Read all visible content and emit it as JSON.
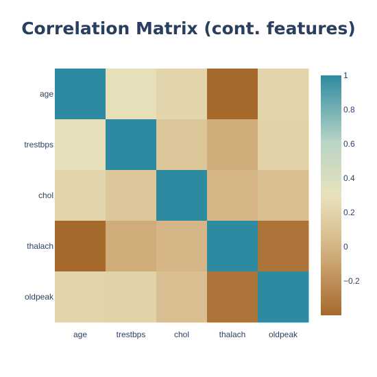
{
  "chart_data": {
    "type": "heatmap",
    "title": "Correlation Matrix (cont. features)",
    "x_categories": [
      "age",
      "trestbps",
      "chol",
      "thalach",
      "oldpeak"
    ],
    "y_categories": [
      "age",
      "trestbps",
      "chol",
      "thalach",
      "oldpeak"
    ],
    "z": [
      [
        1.0,
        0.28,
        0.21,
        -0.4,
        0.21
      ],
      [
        0.28,
        1.0,
        0.12,
        -0.05,
        0.19
      ],
      [
        0.21,
        0.12,
        1.0,
        0.0,
        0.06
      ],
      [
        -0.4,
        -0.05,
        0.0,
        1.0,
        -0.34
      ],
      [
        0.21,
        0.19,
        0.06,
        -0.34,
        1.0
      ]
    ],
    "zlim": [
      -0.4,
      1.0
    ],
    "colorbar": {
      "tick_values": [
        1,
        0.8,
        0.6,
        0.4,
        0.2,
        0,
        -0.2
      ],
      "tick_labels": [
        "1",
        "0.8",
        "0.6",
        "0.4",
        "0.2",
        "0",
        "−0.2"
      ]
    },
    "colorscale": [
      [
        0.0,
        "#a6692c"
      ],
      [
        0.28,
        "#d4b483"
      ],
      [
        0.5,
        "#e8e2bd"
      ],
      [
        0.72,
        "#b9d5c5"
      ],
      [
        1.0,
        "#2e8aa1"
      ]
    ]
  }
}
